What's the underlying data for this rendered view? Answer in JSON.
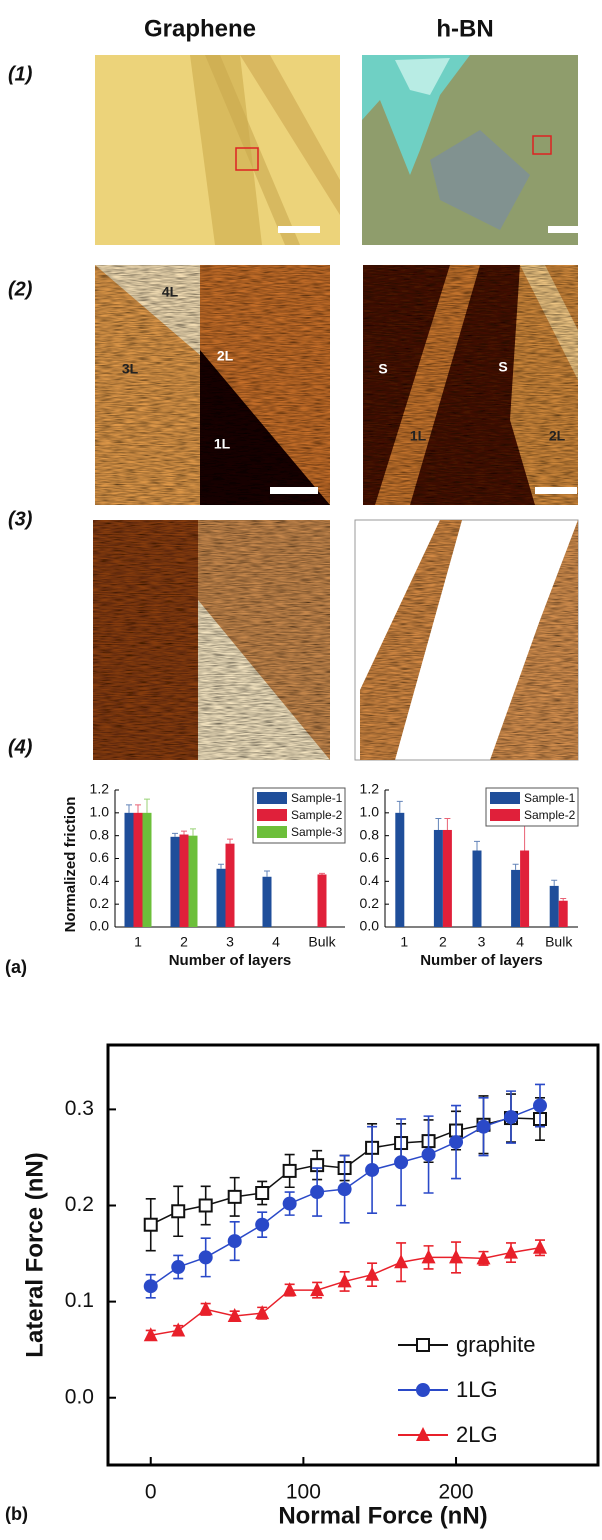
{
  "figure": {
    "column_titles": [
      "Graphene",
      "h-BN"
    ],
    "row_labels": [
      "(1)",
      "(2)",
      "(3)",
      "(4)"
    ],
    "panel_labels": [
      "(a)",
      "(b)"
    ],
    "graphene_afm_labels": [
      "4L",
      "2L",
      "3L",
      "1L"
    ],
    "hbn_afm_labels": [
      "S",
      "S",
      "1L",
      "2L"
    ]
  },
  "chart_data": [
    {
      "type": "bar",
      "y_label": "Normalized friction",
      "x_label": "Number of layers",
      "categories": [
        "1",
        "2",
        "3",
        "4",
        "Bulk"
      ],
      "series": [
        {
          "name": "Sample-1",
          "color": "#1f4e9a",
          "values": [
            1.0,
            0.79,
            0.51,
            0.44,
            null
          ],
          "errors": [
            0.07,
            0.03,
            0.04,
            0.05,
            null
          ]
        },
        {
          "name": "Sample-2",
          "color": "#e0203a",
          "values": [
            1.0,
            0.81,
            0.73,
            null,
            0.46
          ],
          "errors": [
            0.07,
            0.03,
            0.04,
            null,
            0.01
          ]
        },
        {
          "name": "Sample-3",
          "color": "#6cbf3a",
          "values": [
            1.0,
            0.8,
            null,
            null,
            null
          ],
          "errors": [
            0.12,
            0.06,
            null,
            null,
            null
          ]
        }
      ],
      "ylim": [
        0,
        1.2
      ],
      "yticks": [
        {
          "value": 0,
          "label": "0.0"
        },
        0.2,
        0.4,
        0.6,
        0.8,
        {
          "value": 1,
          "label": "1.0"
        },
        1.2
      ],
      "legend": "upper right"
    },
    {
      "type": "bar",
      "x_label": "Number of layers",
      "categories": [
        "1",
        "2",
        "3",
        "4",
        "Bulk"
      ],
      "series": [
        {
          "name": "Sample-1",
          "color": "#1f4e9a",
          "values": [
            1.0,
            0.85,
            0.67,
            0.5,
            0.36
          ],
          "errors": [
            0.1,
            0.1,
            0.08,
            0.05,
            0.05
          ]
        },
        {
          "name": "Sample-2",
          "color": "#e0203a",
          "values": [
            null,
            0.85,
            null,
            0.67,
            0.23
          ],
          "errors": [
            null,
            0.1,
            null,
            0.22,
            0.02
          ]
        }
      ],
      "ylim": [
        0,
        1.2
      ],
      "yticks": [
        {
          "value": 0,
          "label": "0.0"
        },
        0.2,
        0.4,
        0.6,
        0.8,
        {
          "value": 1,
          "label": "1.0"
        },
        1.2
      ],
      "legend": "upper right"
    },
    {
      "type": "line",
      "x_label": "Normal Force (nN)",
      "y_label": "Lateral Force (nN)",
      "x": [
        0,
        18,
        36,
        55,
        73,
        91,
        109,
        127,
        145,
        164,
        182,
        200,
        218,
        236,
        255
      ],
      "series": [
        {
          "name": "graphite",
          "color": "#111111",
          "marker": "square-open",
          "values": [
            0.18,
            0.194,
            0.2,
            0.209,
            0.213,
            0.236,
            0.242,
            0.239,
            0.26,
            0.265,
            0.267,
            0.278,
            0.284,
            0.291,
            0.29
          ],
          "errors": [
            0.027,
            0.026,
            0.02,
            0.02,
            0.012,
            0.017,
            0.015,
            0.013,
            0.025,
            0.02,
            0.022,
            0.02,
            0.03,
            0.025,
            0.022
          ]
        },
        {
          "name": "1LG",
          "color": "#2a49c8",
          "marker": "circle",
          "values": [
            0.116,
            0.136,
            0.146,
            0.163,
            0.18,
            0.202,
            0.214,
            0.217,
            0.237,
            0.245,
            0.253,
            0.266,
            0.282,
            0.292,
            0.304
          ],
          "errors": [
            0.012,
            0.012,
            0.02,
            0.02,
            0.013,
            0.012,
            0.025,
            0.035,
            0.045,
            0.045,
            0.04,
            0.038,
            0.03,
            0.027,
            0.022
          ]
        },
        {
          "name": "2LG",
          "color": "#e8202a",
          "marker": "triangle",
          "values": [
            0.065,
            0.07,
            0.092,
            0.085,
            0.088,
            0.112,
            0.112,
            0.121,
            0.128,
            0.141,
            0.146,
            0.146,
            0.145,
            0.151,
            0.156
          ],
          "errors": [
            0.005,
            0.005,
            0.006,
            0.005,
            0.006,
            0.006,
            0.008,
            0.01,
            0.012,
            0.02,
            0.012,
            0.016,
            0.007,
            0.01,
            0.008
          ]
        }
      ],
      "xlim": [
        -28,
        293
      ],
      "xticks": [
        0,
        100,
        200
      ],
      "ylim": [
        -0.07,
        0.367
      ],
      "yticks": [
        {
          "value": 0,
          "label": "0.0"
        },
        0.1,
        0.2,
        0.3
      ],
      "legend": "lower right"
    }
  ]
}
